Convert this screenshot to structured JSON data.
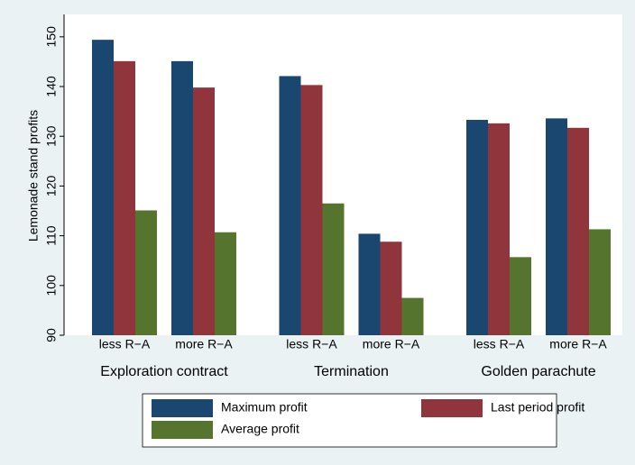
{
  "chart_data": {
    "type": "bar",
    "y_label": "Lemonade stand profits",
    "categories": [
      "less R−A",
      "more R−A",
      "less R−A",
      "more R−A",
      "less R−A",
      "more R−A"
    ],
    "groups": [
      "Exploration contract",
      "Termination",
      "Golden parachute"
    ],
    "series": [
      {
        "name": "Maximum profit",
        "color": "#1a476f",
        "values": [
          149.4,
          145.1,
          142.1,
          110.4,
          133.3,
          133.6
        ]
      },
      {
        "name": "Last period profit",
        "color": "#90353b",
        "values": [
          145.1,
          139.8,
          140.3,
          108.8,
          132.6,
          131.7
        ]
      },
      {
        "name": "Average profit",
        "color": "#55752f",
        "values": [
          115.1,
          110.7,
          116.5,
          97.5,
          105.7,
          111.3
        ]
      }
    ],
    "ylim": [
      90,
      154.5
    ],
    "yticks": [
      90,
      100,
      110,
      120,
      130,
      140,
      150
    ],
    "grid": false
  }
}
